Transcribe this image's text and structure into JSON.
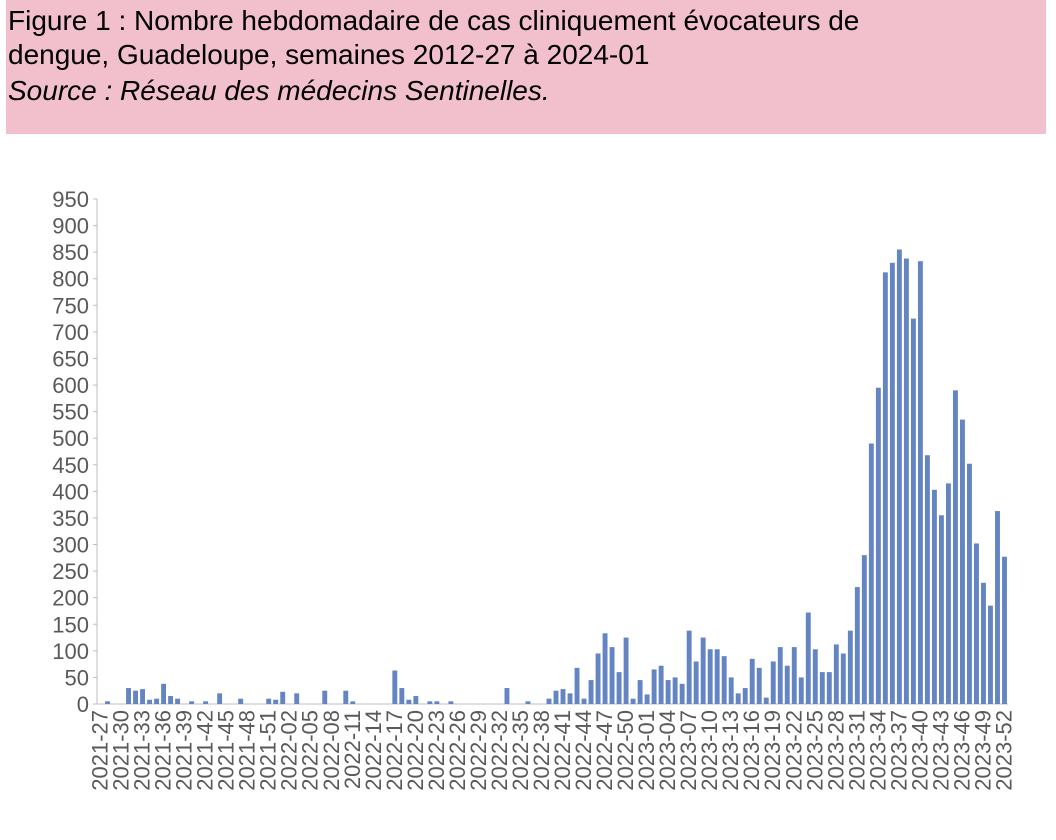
{
  "chart_data": {
    "type": "bar",
    "title": "Figure 1 : Nombre hebdomadaire de cas cliniquement évocateurs de",
    "subtitle": "dengue, Guadeloupe, semaines 2012-27 à 2024-01",
    "source": "Source : Réseau des médecins Sentinelles.",
    "color": "#6485c1",
    "ylim": [
      0,
      950
    ],
    "yticks": [
      0,
      50,
      100,
      150,
      200,
      250,
      300,
      350,
      400,
      450,
      500,
      550,
      600,
      650,
      700,
      750,
      800,
      850,
      900,
      950
    ],
    "categories": [
      "2021-27",
      null,
      null,
      "2021-30",
      null,
      null,
      "2021-33",
      null,
      null,
      "2021-36",
      null,
      null,
      "2021-39",
      null,
      null,
      "2021-42",
      null,
      null,
      "2021-45",
      null,
      null,
      "2021-48",
      null,
      null,
      "2021-51",
      null,
      null,
      "2022-02",
      null,
      null,
      "2022-05",
      null,
      null,
      "2022-08",
      null,
      null,
      "2022-11",
      null,
      null,
      "2022-14",
      null,
      null,
      "2022-17",
      null,
      null,
      "2022-20",
      null,
      null,
      "2022-23",
      null,
      null,
      "2022-26",
      null,
      null,
      "2022-29",
      null,
      null,
      "2022-32",
      null,
      null,
      "2022-35",
      null,
      null,
      "2022-38",
      null,
      null,
      "2022-41",
      null,
      null,
      "2022-44",
      null,
      null,
      "2022-47",
      null,
      null,
      "2022-50",
      null,
      null,
      "2023-01",
      null,
      null,
      "2023-04",
      null,
      null,
      "2023-07",
      null,
      null,
      "2023-10",
      null,
      null,
      "2023-13",
      null,
      null,
      "2023-16",
      null,
      null,
      "2023-19",
      null,
      null,
      "2023-22",
      null,
      null,
      "2023-25",
      null,
      null,
      "2023-28",
      null,
      null,
      "2023-31",
      null,
      null,
      "2023-34",
      null,
      null,
      "2023-37",
      null,
      null,
      "2023-40",
      null,
      null,
      "2023-43",
      null,
      null,
      "2023-46",
      null,
      null,
      "2023-49",
      null,
      null,
      "2023-52"
    ],
    "values": [
      0,
      5,
      0,
      0,
      30,
      25,
      28,
      8,
      10,
      38,
      15,
      10,
      0,
      5,
      0,
      5,
      0,
      20,
      0,
      0,
      10,
      0,
      0,
      0,
      10,
      8,
      23,
      0,
      20,
      0,
      0,
      0,
      25,
      0,
      0,
      25,
      5,
      0,
      0,
      0,
      0,
      0,
      63,
      30,
      8,
      15,
      0,
      5,
      5,
      0,
      5,
      0,
      0,
      0,
      0,
      0,
      0,
      0,
      30,
      0,
      0,
      5,
      0,
      0,
      10,
      25,
      28,
      20,
      68,
      10,
      45,
      95,
      133,
      107,
      60,
      125,
      10,
      45,
      18,
      65,
      72,
      45,
      50,
      38,
      138,
      80,
      125,
      103,
      103,
      90,
      50,
      20,
      30,
      85,
      68,
      12,
      80,
      107,
      72,
      107,
      50,
      172,
      103,
      60,
      60,
      112,
      95,
      138,
      220,
      280,
      490,
      595,
      812,
      830,
      855,
      838,
      725,
      833,
      468,
      403,
      355,
      415,
      590,
      535,
      452,
      302,
      228,
      185,
      363,
      277
    ]
  }
}
